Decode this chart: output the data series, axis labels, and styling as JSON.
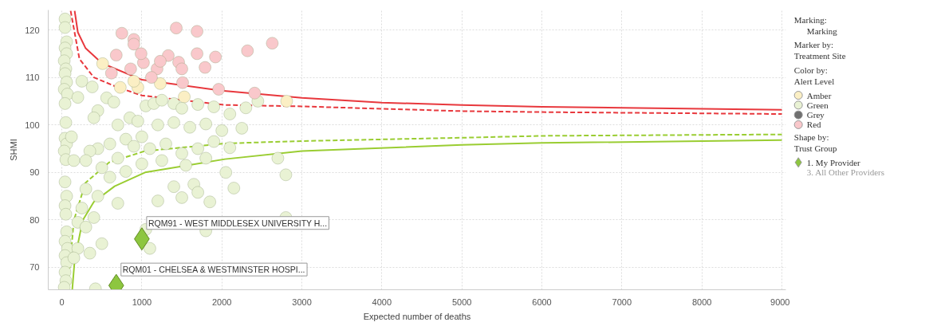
{
  "chart_data": {
    "type": "scatter",
    "xlabel": "Expected number of deaths",
    "ylabel": "SHMI",
    "xlim": [
      -170,
      9050
    ],
    "ylim": [
      65.3,
      124.2
    ],
    "xticks": [
      0,
      1000,
      2000,
      3000,
      4000,
      5000,
      6000,
      7000,
      8000,
      9000
    ],
    "yticks": [
      70,
      80,
      90,
      100,
      110,
      120
    ],
    "grid": true,
    "legend": "right",
    "marker": "circle",
    "annotations": [
      "Marking:",
      "Marking",
      "Marker by:",
      "Treatment Site",
      "Color by:",
      "Alert Level",
      "Shape by:",
      "Trust Group",
      "3. All Other Providers",
      {
        "text": "RQM91 - WEST MIDDLESEX UNIVERSITY H...",
        "x": 1000,
        "y": 76
      },
      {
        "text": "RQM01 - CHELSEA & WESTMINSTER HOSPI...",
        "x": 680,
        "y": 66.2
      }
    ],
    "series": [
      {
        "name": "Amber",
        "color": "#fbefc4",
        "x": [
          510,
          730,
          950,
          1230,
          1530,
          2810,
          900
        ],
        "values": [
          112.9,
          107.9,
          107.9,
          108.7,
          105.9,
          105,
          109.2
        ]
      },
      {
        "name": "Green",
        "color": "#e9f2d4",
        "x": [
          40,
          40,
          60,
          40,
          60,
          30,
          50,
          40,
          60,
          30,
          70,
          40,
          50,
          40,
          60,
          30,
          50,
          40,
          60,
          40,
          50,
          60,
          40,
          70,
          40,
          60,
          40,
          50,
          30,
          150,
          120,
          250,
          380,
          200,
          450,
          560,
          650,
          400,
          700,
          850,
          950,
          1050,
          1150,
          1250,
          1400,
          1500,
          1700,
          1900,
          2100,
          2300,
          2450,
          1800,
          2000,
          2250,
          1600,
          1400,
          1200,
          1000,
          800,
          600,
          450,
          350,
          300,
          500,
          700,
          900,
          1100,
          1300,
          1500,
          1700,
          1900,
          2100,
          1250,
          1550,
          1800,
          1000,
          800,
          600,
          1400,
          1650,
          2050,
          2150,
          1700,
          1500,
          1850,
          1200,
          700,
          450,
          300,
          250,
          400,
          200,
          300,
          1100,
          1050,
          1800,
          500,
          350,
          200,
          150,
          420,
          2700,
          2800,
          2800
        ],
        "values": [
          122.3,
          120.5,
          117.5,
          116.2,
          115,
          113.5,
          111.8,
          110.8,
          109,
          107.5,
          106.5,
          104.5,
          100.5,
          97.2,
          96,
          94.5,
          92.7,
          88,
          85,
          83,
          81.2,
          77.5,
          75.5,
          74,
          72.5,
          71,
          69,
          67.2,
          65.8,
          92.5,
          97.5,
          109.2,
          108,
          105.8,
          103,
          105.7,
          104.8,
          101.5,
          100,
          101.5,
          100.8,
          104,
          104.5,
          105.2,
          104.5,
          103.5,
          104.3,
          103.8,
          102.3,
          103.6,
          105,
          100.2,
          98.8,
          99.3,
          99.5,
          100.5,
          100,
          97.5,
          97,
          96,
          95,
          94.5,
          92.5,
          91,
          93,
          95.5,
          95,
          96,
          94,
          95,
          96.5,
          95.2,
          92.5,
          91.5,
          93,
          91.8,
          90.2,
          89,
          87,
          87.5,
          90,
          86.7,
          85.8,
          84.7,
          83.8,
          84,
          83.5,
          85,
          86.5,
          82.5,
          80.5,
          79.5,
          78.5,
          74,
          78,
          77.7,
          75,
          73,
          74,
          72,
          65.5,
          93,
          89.5,
          80.5
        ]
      },
      {
        "name": "Grey",
        "color": "#707070"
      },
      {
        "name": "Red",
        "color": "#f9c8cb",
        "x": [
          750,
          900,
          900,
          680,
          1430,
          1690,
          2320,
          2630,
          1330,
          1020,
          1460,
          1190,
          1500,
          1790,
          1920,
          1690,
          860,
          1120,
          1510,
          1960,
          2410,
          990,
          1230,
          620
        ],
        "values": [
          119.3,
          118,
          117,
          114.7,
          120.4,
          119.7,
          115.6,
          117.2,
          114.6,
          113.1,
          113.2,
          111.8,
          111.8,
          112.1,
          114.3,
          115,
          111.8,
          110,
          108.9,
          107.5,
          106.7,
          115,
          113.4,
          110.9
        ]
      },
      {
        "name": "1. My Provider",
        "marker": "diamond",
        "color": "#8dc63f",
        "x": [
          1000,
          680
        ],
        "values": [
          76,
          66.2
        ]
      },
      {
        "type": "line",
        "marker": "none",
        "color": "#e8383d",
        "line_style": "solid",
        "x": [
          160,
          200,
          295,
          500,
          1000,
          2000,
          3000,
          4000,
          5000,
          6000,
          9000
        ],
        "values": [
          124,
          119.5,
          116.2,
          113,
          109.5,
          107.2,
          105.7,
          104.7,
          104.2,
          103.8,
          103.2
        ]
      },
      {
        "type": "line",
        "marker": "none",
        "color": "#e8383d",
        "line_style": "dashed",
        "x": [
          110,
          220,
          400,
          700,
          1000,
          2040,
          3000,
          5000,
          6000,
          9000
        ],
        "values": [
          124,
          113.9,
          110,
          107.9,
          106.2,
          104.2,
          103.9,
          102.9,
          102.7,
          102.3
        ]
      },
      {
        "type": "line",
        "marker": "none",
        "color": "#9acd32",
        "line_style": "solid",
        "x": [
          130,
          160,
          260,
          400,
          660,
          1040,
          2040,
          3000,
          5000,
          6000,
          9000
        ],
        "values": [
          65.3,
          71.5,
          79.9,
          83.8,
          87.1,
          90,
          92.8,
          94.5,
          95.8,
          96.2,
          96.8
        ]
      },
      {
        "type": "line",
        "marker": "none",
        "color": "#9acd32",
        "line_style": "dashed",
        "x": [
          75,
          150,
          295,
          590,
          1040,
          2040,
          3000,
          5000,
          6000,
          9000
        ],
        "values": [
          65.3,
          79.9,
          87.8,
          92.1,
          94.5,
          96.1,
          96.6,
          97.3,
          97.7,
          98
        ]
      }
    ]
  }
}
